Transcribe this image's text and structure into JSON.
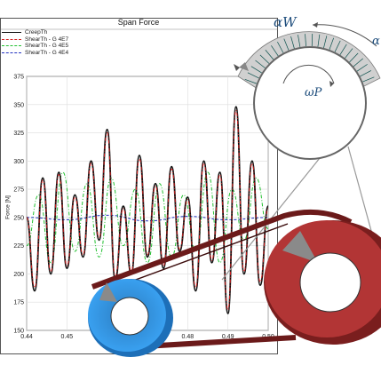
{
  "plot": {
    "title": "Span Force",
    "ylabel": "Force [N]",
    "legend": [
      {
        "name": "CreepTh",
        "color": "#111111",
        "dash": "solid"
      },
      {
        "name": "ShearTh - G 4E7",
        "color": "#d42020",
        "dash": "dashdot"
      },
      {
        "name": "ShearTh - G 4E5",
        "color": "#22c030",
        "dash": "dashdot"
      },
      {
        "name": "ShearTh - G 4E4",
        "color": "#2030c0",
        "dash": "dashed"
      }
    ],
    "y_ticks": [
      "375",
      "350",
      "325",
      "300",
      "275",
      "250",
      "225",
      "200",
      "175",
      "150"
    ],
    "x_ticks": [
      "0.44",
      "0.45",
      "0.48",
      "0.49",
      "0.50"
    ]
  },
  "chart_data": {
    "type": "line",
    "title": "Span Force",
    "ylabel": "Force [N]",
    "xlim": [
      0.44,
      0.5
    ],
    "ylim": [
      150,
      375
    ],
    "grid": true,
    "series": [
      {
        "name": "CreepTh",
        "x": [
          0.44,
          0.442,
          0.444,
          0.446,
          0.448,
          0.45,
          0.452,
          0.454,
          0.456,
          0.458,
          0.46,
          0.462,
          0.464,
          0.466,
          0.468,
          0.47,
          0.472,
          0.474,
          0.476,
          0.478,
          0.48,
          0.482,
          0.484,
          0.486,
          0.488,
          0.49,
          0.492,
          0.494,
          0.496,
          0.498,
          0.5
        ],
        "y": [
          250,
          185,
          285,
          200,
          290,
          205,
          270,
          215,
          300,
          230,
          328,
          195,
          260,
          200,
          305,
          215,
          280,
          205,
          295,
          220,
          268,
          185,
          300,
          210,
          290,
          165,
          348,
          200,
          300,
          190,
          260
        ]
      },
      {
        "name": "ShearTh - G 4E7",
        "x": [
          0.44,
          0.442,
          0.444,
          0.446,
          0.448,
          0.45,
          0.452,
          0.454,
          0.456,
          0.458,
          0.46,
          0.462,
          0.464,
          0.466,
          0.468,
          0.47,
          0.472,
          0.474,
          0.476,
          0.478,
          0.48,
          0.482,
          0.484,
          0.486,
          0.488,
          0.49,
          0.492,
          0.494,
          0.496,
          0.498,
          0.5
        ],
        "y": [
          250,
          188,
          283,
          202,
          288,
          207,
          268,
          217,
          298,
          232,
          325,
          198,
          258,
          202,
          302,
          217,
          278,
          207,
          293,
          222,
          266,
          188,
          298,
          212,
          288,
          168,
          345,
          202,
          298,
          193,
          258
        ]
      },
      {
        "name": "ShearTh - G 4E5",
        "x": [
          0.44,
          0.443,
          0.446,
          0.449,
          0.452,
          0.455,
          0.458,
          0.461,
          0.464,
          0.467,
          0.47,
          0.473,
          0.476,
          0.479,
          0.482,
          0.485,
          0.488,
          0.491,
          0.494,
          0.497,
          0.5
        ],
        "y": [
          225,
          270,
          210,
          290,
          220,
          280,
          215,
          285,
          225,
          275,
          210,
          280,
          215,
          270,
          220,
          290,
          210,
          275,
          230,
          285,
          240
        ]
      },
      {
        "name": "ShearTh - G 4E4",
        "x": [
          0.44,
          0.45,
          0.46,
          0.47,
          0.48,
          0.49,
          0.5
        ],
        "y": [
          250,
          248,
          252,
          247,
          251,
          248,
          250
        ]
      }
    ]
  },
  "diagram": {
    "labels": {
      "alpha_w": "αW",
      "alpha_top_right": "α",
      "omega_p": "ωP"
    },
    "colors": {
      "pulley_small": "#39a0f0",
      "pulley_large": "#b23535",
      "belt": "#6b1a1a",
      "contact_zone": "#1fb3a8"
    }
  }
}
